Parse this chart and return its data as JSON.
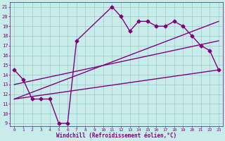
{
  "xlabel": "Windchill (Refroidissement éolien,°C)",
  "bg_color": "#c8ecea",
  "grid_color": "#9ec8c8",
  "line_color": "#800080",
  "xlim": [
    -0.5,
    23.5
  ],
  "ylim": [
    8.7,
    21.5
  ],
  "yticks": [
    9,
    10,
    11,
    12,
    13,
    14,
    15,
    16,
    17,
    18,
    19,
    20,
    21
  ],
  "xticks": [
    0,
    1,
    2,
    3,
    4,
    5,
    6,
    7,
    8,
    9,
    10,
    11,
    12,
    13,
    14,
    15,
    16,
    17,
    18,
    19,
    20,
    21,
    22,
    23
  ],
  "series": [
    {
      "x": [
        0,
        1,
        2,
        3,
        4,
        5,
        6,
        7,
        11,
        12,
        13,
        14,
        15,
        16,
        17,
        18,
        19,
        20,
        21,
        22,
        23
      ],
      "y": [
        14.5,
        13.5,
        11.5,
        11.5,
        11.5,
        9.0,
        9.0,
        17.5,
        21.0,
        20.0,
        18.5,
        19.5,
        19.5,
        19.0,
        19.0,
        19.5,
        19.0,
        18.0,
        17.0,
        16.5,
        14.5
      ],
      "marker": "D",
      "markersize": 2.5,
      "linewidth": 1.0
    },
    {
      "x": [
        0,
        23
      ],
      "y": [
        11.5,
        14.5
      ],
      "marker": null,
      "linewidth": 1.0
    },
    {
      "x": [
        0,
        23
      ],
      "y": [
        11.5,
        19.5
      ],
      "marker": null,
      "linewidth": 1.0
    },
    {
      "x": [
        0,
        23
      ],
      "y": [
        13.0,
        17.5
      ],
      "marker": null,
      "linewidth": 1.0
    }
  ]
}
